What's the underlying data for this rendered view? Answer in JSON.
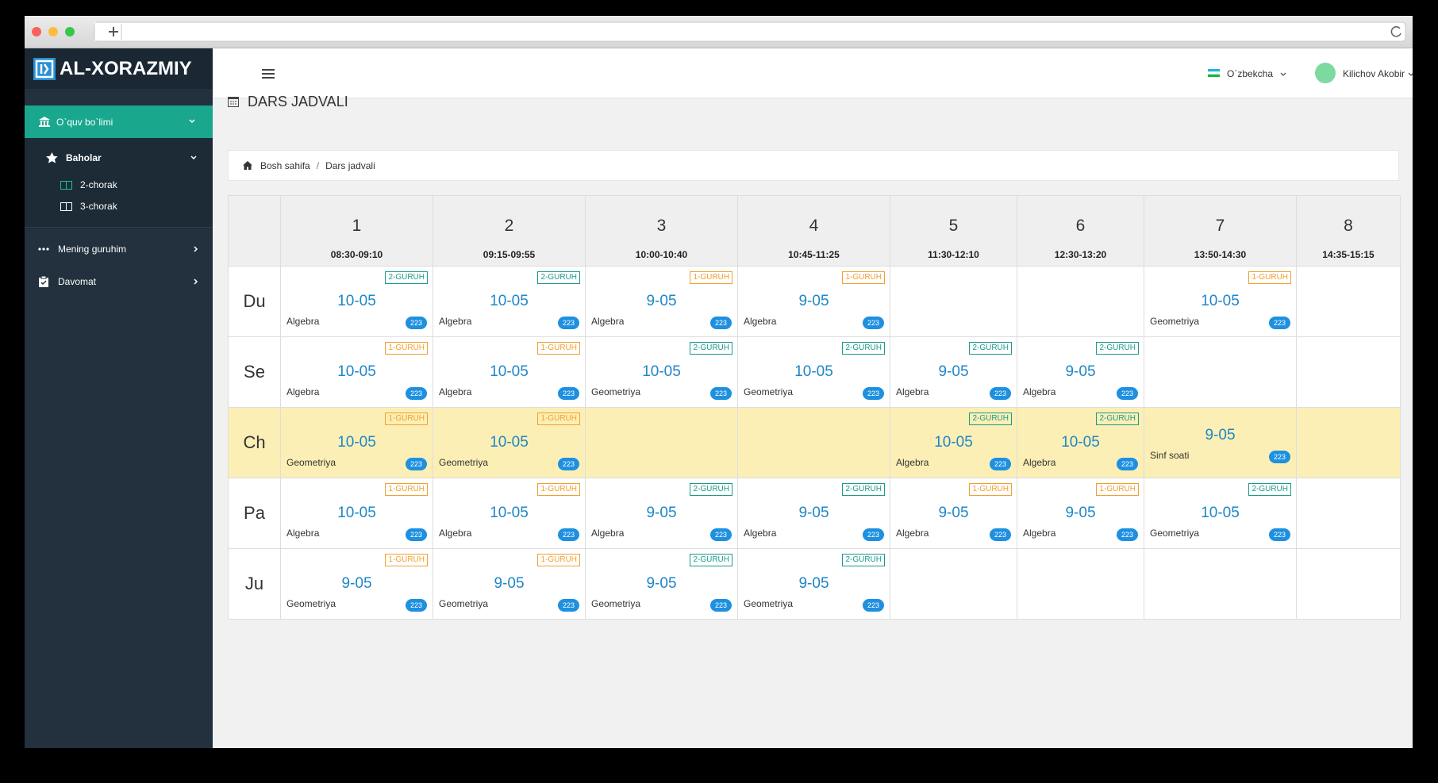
{
  "sidebar": {
    "logo": "AL-XORAZMIY",
    "menu": [
      {
        "label": "O`quv bo`limi",
        "children": [
          {
            "label": "Baholar",
            "children": [
              {
                "label": "2-chorak"
              },
              {
                "label": "3-chorak"
              }
            ]
          }
        ]
      },
      {
        "label": "Mening guruhim"
      },
      {
        "label": "Davomat"
      }
    ]
  },
  "topbar": {
    "language": "O`zbekcha",
    "user": "Kilichov Akobir"
  },
  "header": {
    "title": "DARS JADVALI"
  },
  "breadcrumb": {
    "items": [
      "Bosh sahifa",
      "Dars jadvali"
    ],
    "separator": "/"
  },
  "table": {
    "periods": [
      {
        "number": "1",
        "time": "08:30-09:10"
      },
      {
        "number": "2",
        "time": "09:15-09:55"
      },
      {
        "number": "3",
        "time": "10:00-10:40"
      },
      {
        "number": "4",
        "time": "10:45-11:25"
      },
      {
        "number": "5",
        "time": "11:30-12:10"
      },
      {
        "number": "6",
        "time": "12:30-13:20"
      },
      {
        "number": "7",
        "time": "13:50-14:30"
      },
      {
        "number": "8",
        "time": "14:35-15:15"
      }
    ],
    "rows": [
      {
        "day": "Du",
        "cells": [
          {
            "group": "2-GURUH",
            "color": "#1a9a8a",
            "class": "10-05",
            "subject": "Algebra",
            "room": "223"
          },
          {
            "group": "2-GURUH",
            "color": "#1a9a8a",
            "class": "10-05",
            "subject": "Algebra",
            "room": "223"
          },
          {
            "group": "1-GURUH",
            "color": "#f0a030",
            "class": "9-05",
            "subject": "Algebra",
            "room": "223"
          },
          {
            "group": "1-GURUH",
            "color": "#f0a030",
            "class": "9-05",
            "subject": "Algebra",
            "room": "223"
          },
          null,
          null,
          {
            "group": "1-GURUH",
            "color": "#f0a030",
            "class": "10-05",
            "subject": "Geometriya",
            "room": "223"
          },
          null
        ]
      },
      {
        "day": "Se",
        "cells": [
          {
            "group": "1-GURUH",
            "color": "#f0a030",
            "class": "10-05",
            "subject": "Algebra",
            "room": "223"
          },
          {
            "group": "1-GURUH",
            "color": "#f0a030",
            "class": "10-05",
            "subject": "Algebra",
            "room": "223"
          },
          {
            "group": "2-GURUH",
            "color": "#1a9a8a",
            "class": "10-05",
            "subject": "Geometriya",
            "room": "223"
          },
          {
            "group": "2-GURUH",
            "color": "#1a9a8a",
            "class": "10-05",
            "subject": "Geometriya",
            "room": "223"
          },
          {
            "group": "2-GURUH",
            "color": "#1a9a8a",
            "class": "9-05",
            "subject": "Algebra",
            "room": "223"
          },
          {
            "group": "2-GURUH",
            "color": "#1a9a8a",
            "class": "9-05",
            "subject": "Algebra",
            "room": "223"
          },
          null,
          null
        ]
      },
      {
        "day": "Ch",
        "highlight": "#fcefb5",
        "cells": [
          {
            "group": "1-GURUH",
            "color": "#f0a030",
            "class": "10-05",
            "subject": "Geometriya",
            "room": "223"
          },
          {
            "group": "1-GURUH",
            "color": "#f0a030",
            "class": "10-05",
            "subject": "Geometriya",
            "room": "223"
          },
          null,
          null,
          {
            "group": "2-GURUH",
            "color": "#1a9a8a",
            "class": "10-05",
            "subject": "Algebra",
            "room": "223"
          },
          {
            "group": "2-GURUH",
            "color": "#1a9a8a",
            "class": "10-05",
            "subject": "Algebra",
            "room": "223"
          },
          {
            "class": "9-05",
            "subject": "Sinf soati",
            "room": "223"
          },
          null
        ]
      },
      {
        "day": "Pa",
        "cells": [
          {
            "group": "1-GURUH",
            "color": "#f0a030",
            "class": "10-05",
            "subject": "Algebra",
            "room": "223"
          },
          {
            "group": "1-GURUH",
            "color": "#f0a030",
            "class": "10-05",
            "subject": "Algebra",
            "room": "223"
          },
          {
            "group": "2-GURUH",
            "color": "#1a9a8a",
            "class": "9-05",
            "subject": "Algebra",
            "room": "223"
          },
          {
            "group": "2-GURUH",
            "color": "#1a9a8a",
            "class": "9-05",
            "subject": "Algebra",
            "room": "223"
          },
          {
            "group": "1-GURUH",
            "color": "#f0a030",
            "class": "9-05",
            "subject": "Algebra",
            "room": "223"
          },
          {
            "group": "1-GURUH",
            "color": "#f0a030",
            "class": "9-05",
            "subject": "Algebra",
            "room": "223"
          },
          {
            "group": "2-GURUH",
            "color": "#1a9a8a",
            "class": "10-05",
            "subject": "Geometriya",
            "room": "223"
          },
          null
        ]
      },
      {
        "day": "Ju",
        "cells": [
          {
            "group": "1-GURUH",
            "color": "#f0a030",
            "class": "9-05",
            "subject": "Geometriya",
            "room": "223"
          },
          {
            "group": "1-GURUH",
            "color": "#f0a030",
            "class": "9-05",
            "subject": "Geometriya",
            "room": "223"
          },
          {
            "group": "2-GURUH",
            "color": "#1a9a8a",
            "class": "9-05",
            "subject": "Geometriya",
            "room": "223"
          },
          {
            "group": "2-GURUH",
            "color": "#1a9a8a",
            "class": "9-05",
            "subject": "Geometriya",
            "room": "223"
          },
          null,
          null,
          null,
          null
        ]
      }
    ]
  }
}
